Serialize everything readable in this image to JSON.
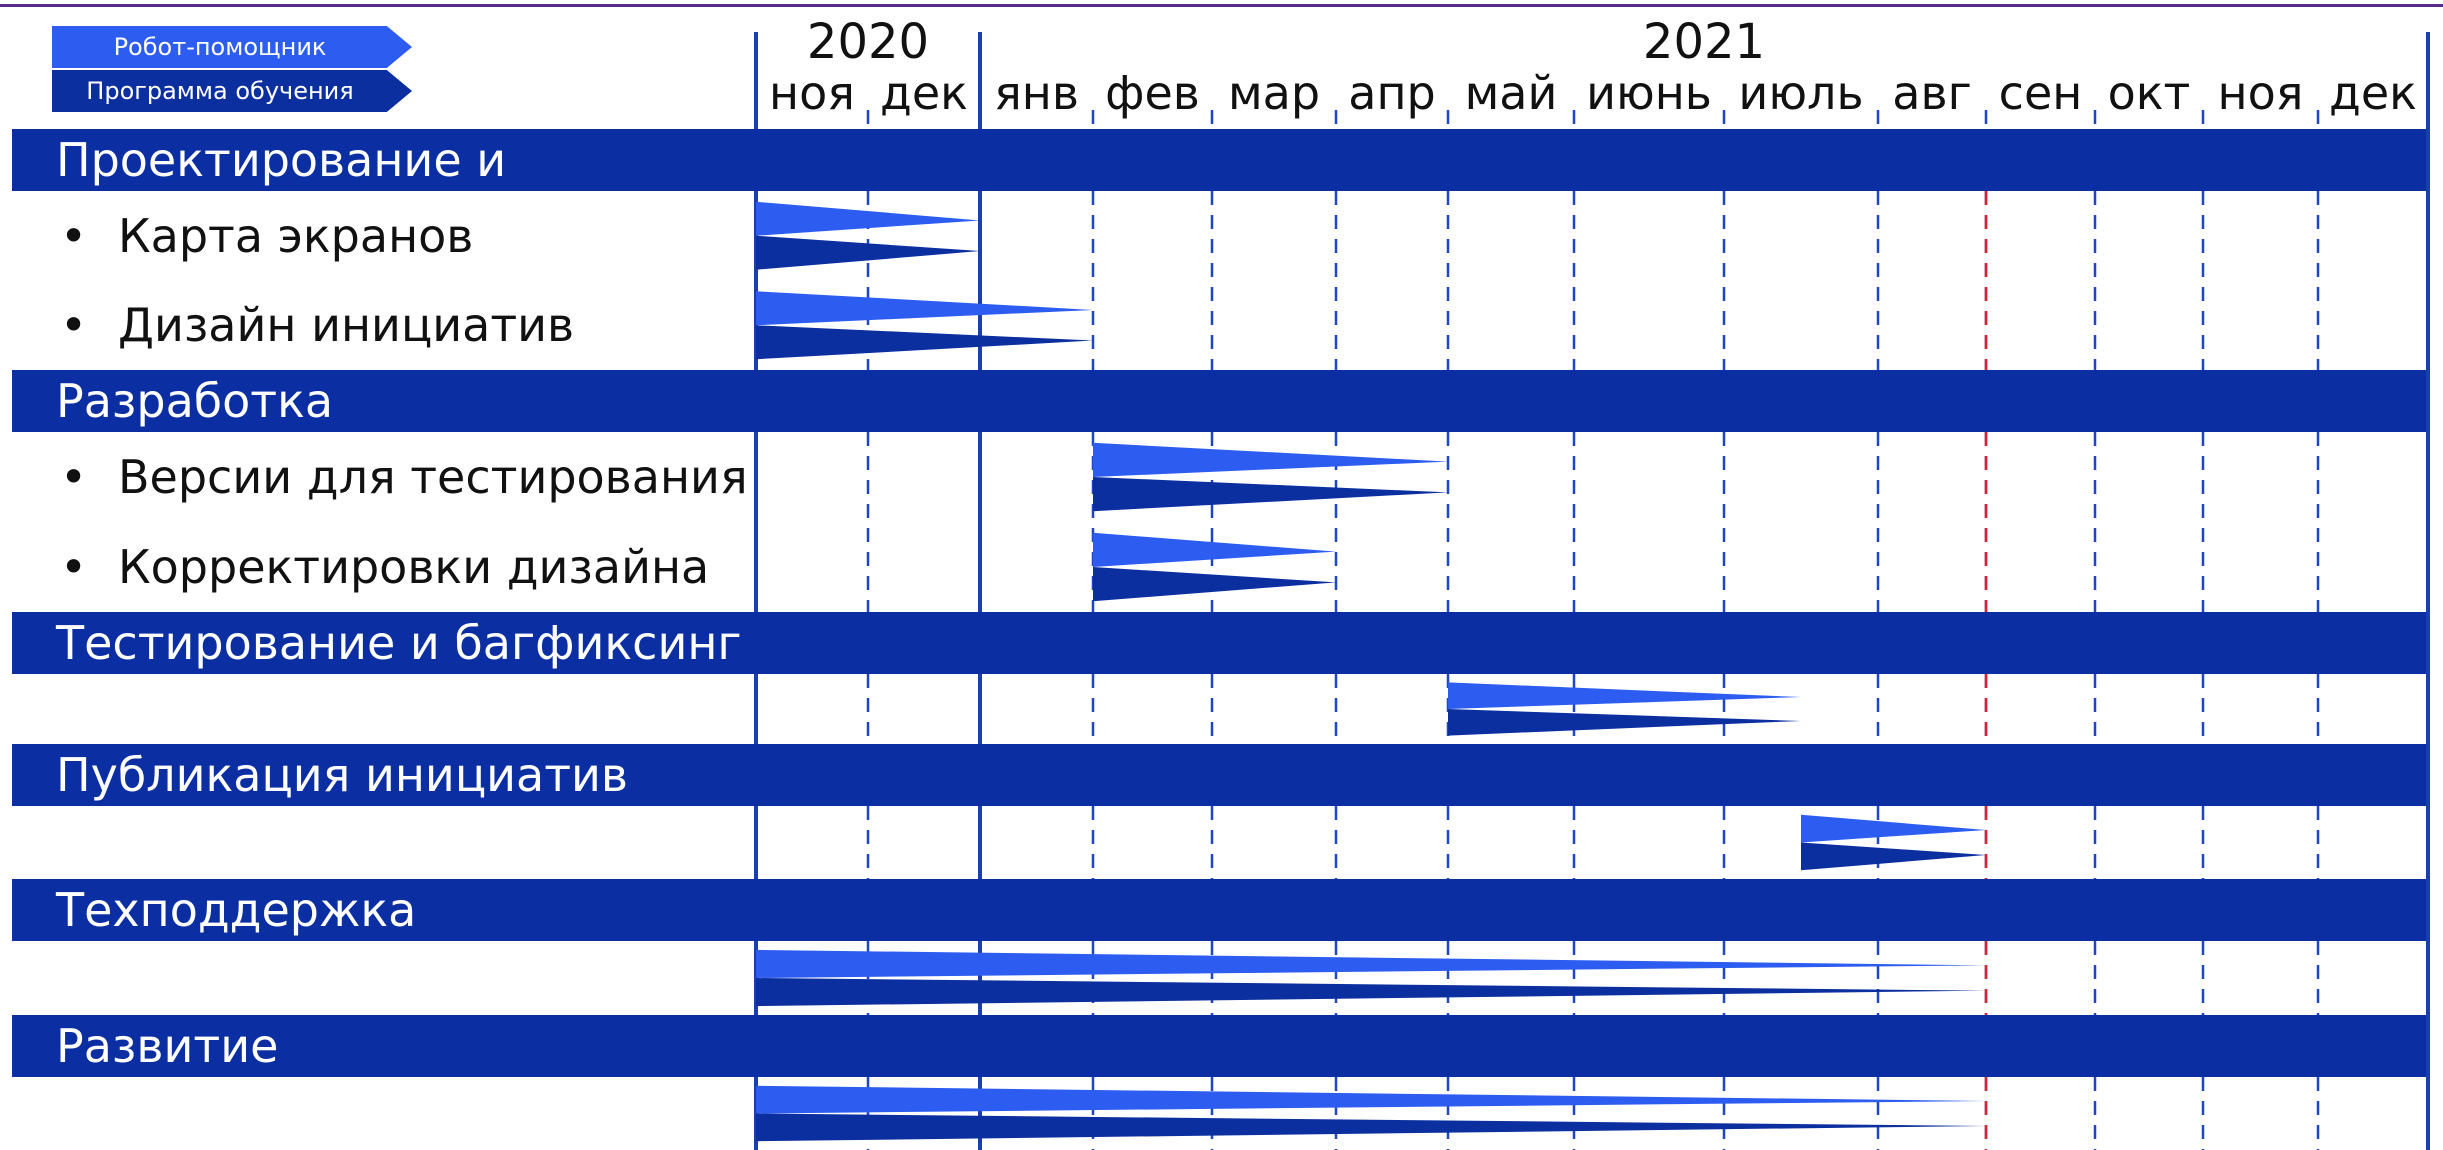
{
  "legend": [
    {
      "label": "Робот-помощник",
      "color": "#2d5df0"
    },
    {
      "label": "Программа обучения",
      "color": "#0b2f9e"
    }
  ],
  "timeline": {
    "years": [
      {
        "label": "2020",
        "span": [
          0,
          2
        ]
      },
      {
        "label": "2021",
        "span": [
          2,
          14
        ]
      }
    ],
    "months": [
      "ноя",
      "дек",
      "янв",
      "фев",
      "мар",
      "апр",
      "май",
      "июнь",
      "июль",
      "авг",
      "сен",
      "окт",
      "ноя",
      "дек"
    ],
    "today_marker_month_index": 10,
    "colors": {
      "section_band": "#0b2fa3",
      "gridline": "#1e44c8",
      "year_divider": "#1a3db0",
      "today_line": "#e0202a",
      "robot_bar": "#2d5df0",
      "program_bar": "#0b2f9e"
    }
  },
  "sections": [
    {
      "title": "Проектирование и",
      "tasks": [
        {
          "label": "Карта экранов",
          "start": 0,
          "end": 2
        },
        {
          "label": "Дизайн инициатив",
          "start": 0,
          "end": 3
        }
      ]
    },
    {
      "title": "Разработка",
      "tasks": [
        {
          "label": "Версии для тестирования",
          "start": 3,
          "end": 6
        },
        {
          "label": "Корректировки дизайна",
          "start": 3,
          "end": 5
        }
      ]
    },
    {
      "title": "Тестирование и багфиксинг",
      "tasks": [
        {
          "label": "",
          "start": 6,
          "end": 8.5
        }
      ]
    },
    {
      "title": "Публикация инициатив",
      "tasks": [
        {
          "label": "",
          "start": 8.5,
          "end": 10
        }
      ]
    },
    {
      "title": "Техподдержка",
      "tasks": [
        {
          "label": "",
          "start": 0,
          "end": 10
        }
      ]
    },
    {
      "title": "Развитие",
      "tasks": [
        {
          "label": "",
          "start": 0,
          "end": 10
        }
      ]
    }
  ]
}
